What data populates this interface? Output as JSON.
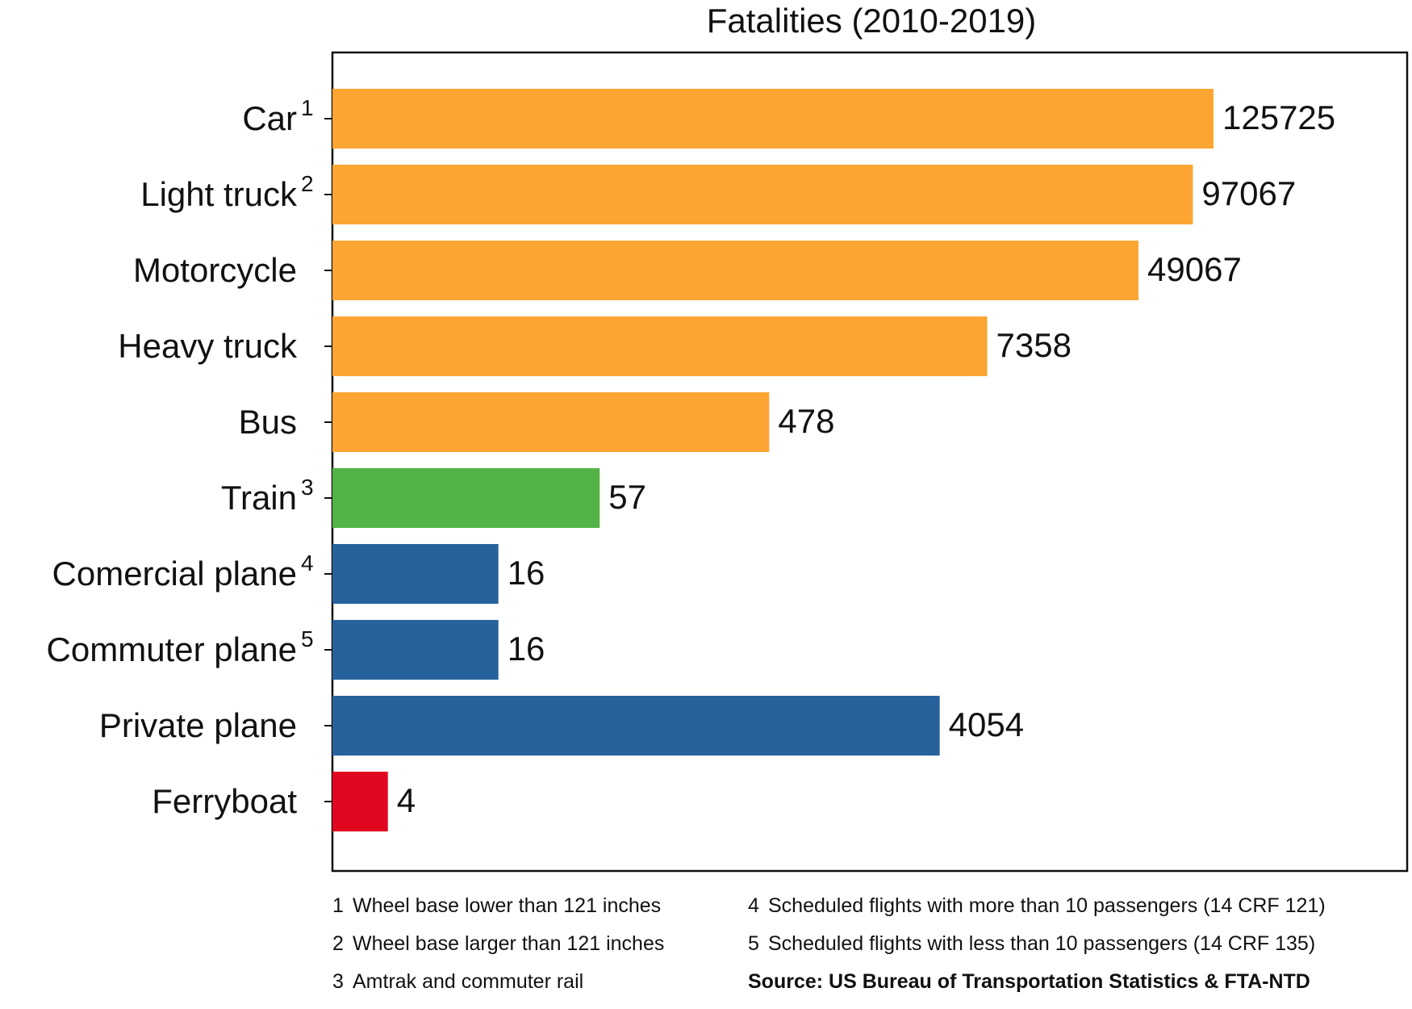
{
  "chart_data": {
    "type": "bar",
    "orientation": "horizontal",
    "title": "Fatalities (2010-2019)",
    "xlabel": "",
    "ylabel": "",
    "scale": "log",
    "grid": false,
    "legend": "none",
    "categories": [
      {
        "label": "Car",
        "footnote": "1"
      },
      {
        "label": "Light truck",
        "footnote": "2"
      },
      {
        "label": "Motorcycle",
        "footnote": ""
      },
      {
        "label": "Heavy truck",
        "footnote": ""
      },
      {
        "label": "Bus",
        "footnote": ""
      },
      {
        "label": "Train",
        "footnote": "3"
      },
      {
        "label": "Comercial plane",
        "footnote": "4"
      },
      {
        "label": "Commuter plane",
        "footnote": "5"
      },
      {
        "label": "Private plane",
        "footnote": ""
      },
      {
        "label": "Ferryboat",
        "footnote": ""
      }
    ],
    "values": [
      125725,
      97067,
      49067,
      7358,
      478,
      57,
      16,
      16,
      4054,
      4
    ],
    "value_labels": [
      "125725",
      "97067",
      "49067",
      "7358",
      "478",
      "57",
      "16",
      "16",
      "4054",
      "4"
    ],
    "colors": [
      "#fda533",
      "#fda533",
      "#fda533",
      "#fda533",
      "#fda533",
      "#52b346",
      "#27629d",
      "#27629d",
      "#27629d",
      "#e0061f"
    ]
  },
  "footnotes": {
    "left": [
      {
        "num": "1",
        "text": "Wheel base lower than 121 inches"
      },
      {
        "num": "2",
        "text": "Wheel base larger than 121 inches"
      },
      {
        "num": "3",
        "text": "Amtrak and commuter rail"
      }
    ],
    "right": [
      {
        "num": "4",
        "text": "Scheduled flights with more than 10 passengers (14 CRF 121)"
      },
      {
        "num": "5",
        "text": "Scheduled flights with less than 10 passengers (14 CRF 135)"
      }
    ],
    "source": "Source: US Bureau of Transportation Statistics & FTA-NTD"
  }
}
